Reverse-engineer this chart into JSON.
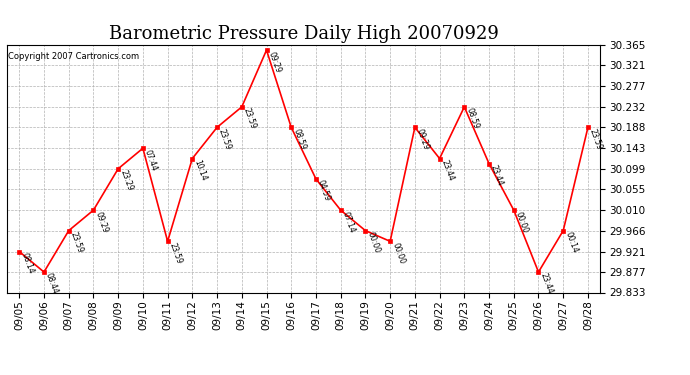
{
  "title": "Barometric Pressure Daily High 20070929",
  "copyright": "Copyright 2007 Cartronics.com",
  "x_labels": [
    "09/05",
    "09/06",
    "09/07",
    "09/08",
    "09/09",
    "09/10",
    "09/11",
    "09/12",
    "09/13",
    "09/14",
    "09/15",
    "09/16",
    "09/17",
    "09/18",
    "09/19",
    "09/20",
    "09/21",
    "09/22",
    "09/23",
    "09/24",
    "09/25",
    "09/26",
    "09/27",
    "09/28"
  ],
  "y_values": [
    29.921,
    29.877,
    29.966,
    30.01,
    30.099,
    30.143,
    29.943,
    30.121,
    30.188,
    30.232,
    30.354,
    30.188,
    30.077,
    30.01,
    29.966,
    29.943,
    30.188,
    30.121,
    30.232,
    30.11,
    30.01,
    29.877,
    29.966,
    30.188
  ],
  "point_labels": [
    "08:14",
    "08:44",
    "23:59",
    "09:29",
    "23:29",
    "07:44",
    "23:59",
    "10:14",
    "23:59",
    "23:59",
    "09:29",
    "08:59",
    "04:59",
    "07:14",
    "00:00",
    "00:00",
    "09:29",
    "23:44",
    "08:59",
    "23:44",
    "00:00",
    "23:44",
    "00:14",
    "23:59"
  ],
  "ylim_min": 29.833,
  "ylim_max": 30.365,
  "yticks": [
    29.833,
    29.877,
    29.921,
    29.966,
    30.01,
    30.055,
    30.099,
    30.143,
    30.188,
    30.232,
    30.277,
    30.321,
    30.365
  ],
  "line_color": "red",
  "marker_color": "red",
  "marker_size": 3,
  "background_color": "white",
  "grid_color": "#aaaaaa",
  "title_fontsize": 13,
  "tick_fontsize": 7.5
}
